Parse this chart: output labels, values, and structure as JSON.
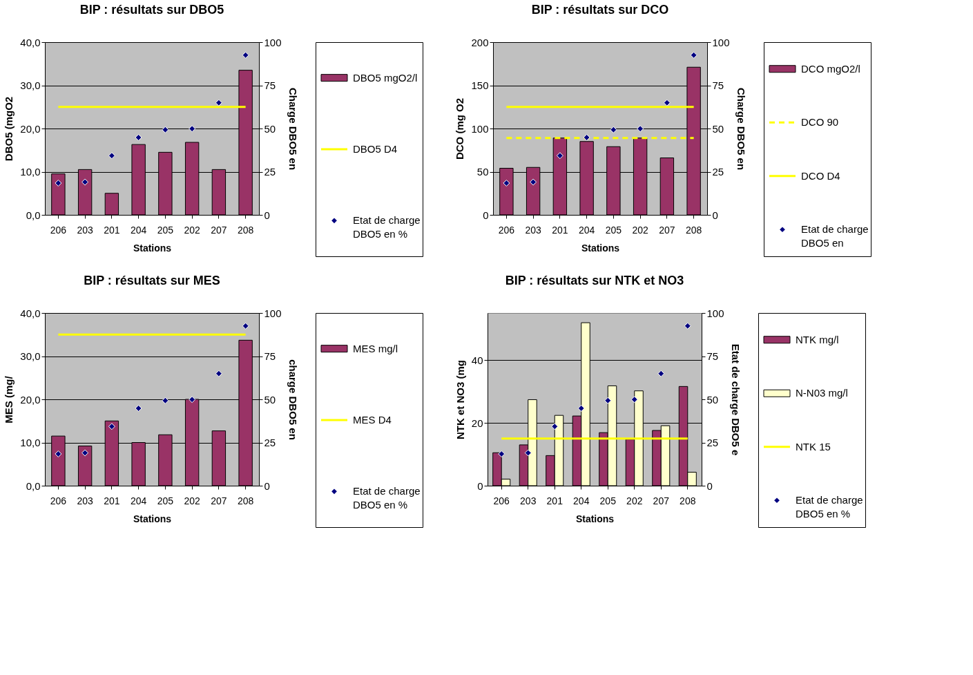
{
  "chart_data": [
    {
      "type": "bar",
      "title": "BIP : résultats sur DBO5",
      "xlabel": "Stations",
      "ylabel": "DBO5 (mgO2",
      "y2label": "Charge DBO5 en",
      "categories": [
        "206",
        "203",
        "201",
        "204",
        "205",
        "202",
        "207",
        "208"
      ],
      "series": [
        {
          "name": "DBO5 mgO2/l",
          "type": "bar",
          "color": "#993366",
          "values": [
            9.5,
            10.5,
            5.0,
            16.3,
            14.5,
            16.8,
            10.5,
            33.5
          ]
        },
        {
          "name": "DBO5 D4",
          "type": "line",
          "color": "#ffff00",
          "line_style": "solid",
          "values": [
            25,
            25,
            25,
            25,
            25,
            25,
            25,
            25
          ]
        },
        {
          "name": "Etat de charge DBO5 en %",
          "type": "scatter",
          "axis": "y2",
          "marker": "diamond",
          "color": "#000080",
          "values": [
            18.4,
            19,
            34.3,
            44.8,
            49.3,
            49.9,
            64.9,
            92.5
          ]
        }
      ],
      "ylim": [
        0,
        40
      ],
      "yticks": [
        {
          "value": 0,
          "label": "0,0"
        },
        {
          "value": 10,
          "label": "10,0"
        },
        {
          "value": 20,
          "label": "20,0"
        },
        {
          "value": 30,
          "label": "30,0"
        },
        {
          "value": 40,
          "label": "40,0"
        }
      ],
      "y2lim": [
        0,
        100
      ],
      "y2ticks": [
        0,
        25,
        50,
        75,
        100
      ],
      "grid": "y",
      "legend": "right"
    },
    {
      "type": "bar",
      "title": "BIP : résultats sur DCO",
      "xlabel": "Stations",
      "ylabel": "DCO (mg O2",
      "y2label": "Charge DBO5 en",
      "categories": [
        "206",
        "203",
        "201",
        "204",
        "205",
        "202",
        "207",
        "208"
      ],
      "series": [
        {
          "name": "DCO mgO2/l",
          "type": "bar",
          "color": "#993366",
          "values": [
            54,
            55,
            89,
            85,
            79,
            89,
            66,
            171
          ]
        },
        {
          "name": "DCO 90",
          "type": "line",
          "color": "#ffff00",
          "line_style": "dashed",
          "values": [
            89,
            89,
            89,
            89,
            89,
            89,
            89,
            89
          ]
        },
        {
          "name": "DCO D4",
          "type": "line",
          "color": "#ffff00",
          "line_style": "solid",
          "values": [
            125,
            125,
            125,
            125,
            125,
            125,
            125,
            125
          ]
        },
        {
          "name": "Etat de charge DBO5 en",
          "type": "scatter",
          "axis": "y2",
          "marker": "diamond",
          "color": "#000080",
          "values": [
            18.4,
            19,
            34.3,
            44.8,
            49.3,
            49.9,
            64.9,
            92.5
          ]
        }
      ],
      "ylim": [
        0,
        200
      ],
      "yticks": [
        0,
        50,
        100,
        150,
        200
      ],
      "y2lim": [
        0,
        100
      ],
      "y2ticks": [
        0,
        25,
        50,
        75,
        100
      ],
      "grid": "y",
      "legend": "right"
    },
    {
      "type": "bar",
      "title": "BIP : résultats sur MES",
      "xlabel": "Stations",
      "ylabel": "MES (mg/",
      "y2label": "charge DBO5 en",
      "categories": [
        "206",
        "203",
        "201",
        "204",
        "205",
        "202",
        "207",
        "208"
      ],
      "series": [
        {
          "name": "MES mg/l",
          "type": "bar",
          "color": "#993366",
          "values": [
            11.5,
            9.2,
            15.0,
            10.0,
            11.8,
            20.0,
            12.7,
            33.7
          ]
        },
        {
          "name": "MES D4",
          "type": "line",
          "color": "#ffff00",
          "line_style": "solid",
          "values": [
            35,
            35,
            35,
            35,
            35,
            35,
            35,
            35
          ]
        },
        {
          "name": "Etat de charge DBO5 en %",
          "type": "scatter",
          "axis": "y2",
          "marker": "diamond",
          "color": "#000080",
          "values": [
            18.4,
            19,
            34.3,
            44.8,
            49.3,
            49.9,
            64.9,
            92.5
          ]
        }
      ],
      "ylim": [
        0,
        40
      ],
      "yticks": [
        {
          "value": 0,
          "label": "0,0"
        },
        {
          "value": 10,
          "label": "10,0"
        },
        {
          "value": 20,
          "label": "20,0"
        },
        {
          "value": 30,
          "label": "30,0"
        },
        {
          "value": 40,
          "label": "40,0"
        }
      ],
      "y2lim": [
        0,
        100
      ],
      "y2ticks": [
        0,
        25,
        50,
        75,
        100
      ],
      "grid": "y",
      "legend": "right"
    },
    {
      "type": "bar",
      "title": "BIP : résultats sur NTK et NO3",
      "xlabel": "Stations",
      "ylabel": "NTK et NO3 (mg",
      "y2label": "Etat de charge DBO5 e",
      "categories": [
        "206",
        "203",
        "201",
        "204",
        "205",
        "202",
        "207",
        "208"
      ],
      "series": [
        {
          "name": "NTK mg/l",
          "type": "bar",
          "color": "#993366",
          "values": [
            10.5,
            13.0,
            9.6,
            22.2,
            16.9,
            14.8,
            17.6,
            31.6
          ]
        },
        {
          "name": "N-N03 mg/l",
          "type": "bar",
          "color": "#ffffcc",
          "values": [
            2.1,
            27.4,
            22.4,
            51.9,
            31.8,
            30.2,
            19.1,
            4.3
          ]
        },
        {
          "name": "NTK 15",
          "type": "line",
          "color": "#ffff00",
          "line_style": "solid",
          "values": [
            15,
            15,
            15,
            15,
            15,
            15,
            15,
            15
          ]
        },
        {
          "name": "Etat de charge DBO5 en %",
          "type": "scatter",
          "axis": "y2",
          "marker": "diamond",
          "color": "#000080",
          "values": [
            18.4,
            19,
            34.3,
            44.8,
            49.3,
            49.9,
            64.9,
            92.5
          ]
        }
      ],
      "ylim": [
        0,
        55
      ],
      "yticks": [
        0,
        20,
        40
      ],
      "y2lim": [
        0,
        100
      ],
      "y2ticks": [
        0,
        25,
        50,
        75,
        100
      ],
      "grid": "y",
      "legend": "right"
    }
  ]
}
